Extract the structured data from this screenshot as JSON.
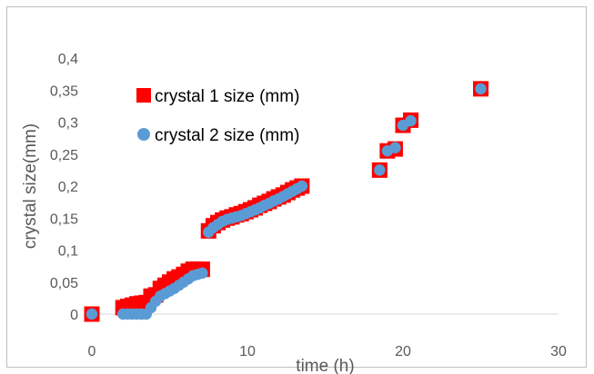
{
  "chart_data": {
    "type": "scatter",
    "title": "",
    "xlabel": "time (h)",
    "ylabel": "crystal size(mm)",
    "xlim": [
      0,
      30
    ],
    "ylim": [
      0,
      0.4
    ],
    "x_ticks": [
      0,
      10,
      20,
      30
    ],
    "x_tick_labels": [
      "0",
      "10",
      "20",
      "30"
    ],
    "y_ticks": [
      0,
      0.05,
      0.1,
      0.15,
      0.2,
      0.25,
      0.3,
      0.35,
      0.4
    ],
    "y_tick_labels": [
      "0",
      "0,05",
      "0,1",
      "0,15",
      "0,2",
      "0,25",
      "0,3",
      "0,35",
      "0,4"
    ],
    "grid": false,
    "legend_position": "top-left",
    "series": [
      {
        "name": "crystal 1 size (mm)",
        "marker": "square",
        "color": "#ff0000",
        "x": [
          0,
          2,
          2.3,
          2.6,
          2.9,
          3.2,
          3.5,
          3.8,
          4.1,
          4.4,
          4.7,
          5.0,
          5.3,
          5.6,
          5.9,
          6.2,
          6.5,
          6.8,
          7.1,
          7.5,
          7.8,
          8.1,
          8.4,
          8.7,
          9.0,
          9.3,
          9.6,
          9.9,
          10.2,
          10.5,
          10.8,
          11.1,
          11.4,
          11.7,
          12.0,
          12.3,
          12.6,
          12.9,
          13.2,
          13.5,
          18.5,
          19.0,
          19.5,
          20.0,
          20.5,
          25.0
        ],
        "y": [
          0,
          0.01,
          0.012,
          0.014,
          0.016,
          0.017,
          0.018,
          0.028,
          0.03,
          0.04,
          0.045,
          0.05,
          0.055,
          0.058,
          0.062,
          0.067,
          0.07,
          0.07,
          0.07,
          0.13,
          0.138,
          0.143,
          0.147,
          0.15,
          0.152,
          0.155,
          0.157,
          0.16,
          0.163,
          0.166,
          0.17,
          0.173,
          0.176,
          0.18,
          0.183,
          0.186,
          0.19,
          0.194,
          0.197,
          0.2,
          0.225,
          0.255,
          0.258,
          0.295,
          0.303,
          0.352
        ]
      },
      {
        "name": "crystal 2 size (mm)",
        "marker": "circle",
        "color": "#5b9bd5",
        "x": [
          0,
          2,
          2.3,
          2.6,
          2.9,
          3.2,
          3.5,
          3.8,
          4.1,
          4.4,
          4.7,
          5.0,
          5.3,
          5.6,
          5.9,
          6.2,
          6.5,
          6.8,
          7.1,
          7.5,
          7.8,
          8.1,
          8.4,
          8.7,
          9.0,
          9.3,
          9.6,
          9.9,
          10.2,
          10.5,
          10.8,
          11.1,
          11.4,
          11.7,
          12.0,
          12.3,
          12.6,
          12.9,
          13.2,
          13.5,
          18.5,
          19.0,
          19.5,
          20.0,
          20.5,
          25.0
        ],
        "y": [
          0,
          0,
          0,
          0,
          0,
          0,
          0,
          0.01,
          0.02,
          0.028,
          0.032,
          0.036,
          0.04,
          0.045,
          0.05,
          0.055,
          0.06,
          0.062,
          0.064,
          0.128,
          0.135,
          0.14,
          0.145,
          0.148,
          0.15,
          0.152,
          0.154,
          0.157,
          0.16,
          0.163,
          0.166,
          0.17,
          0.173,
          0.177,
          0.18,
          0.184,
          0.188,
          0.192,
          0.196,
          0.2,
          0.225,
          0.255,
          0.26,
          0.295,
          0.302,
          0.352
        ]
      }
    ]
  }
}
